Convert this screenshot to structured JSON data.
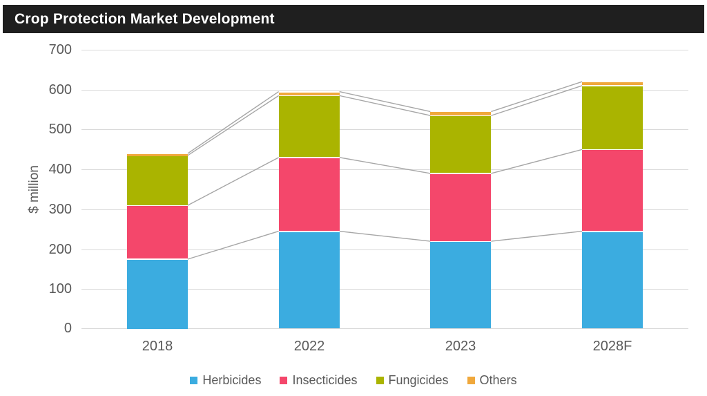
{
  "title_bar": {
    "title": "Crop Protection Market Development",
    "bg_color": "#1F1F1F",
    "text_color": "#FFFFFF"
  },
  "chart_data": {
    "type": "bar",
    "stacked": true,
    "title": "Crop Protection Market Development",
    "categories": [
      "2018",
      "2022",
      "2023",
      "2028F"
    ],
    "series": [
      {
        "name": "Herbicides",
        "color": "#3BACE0",
        "values": [
          175,
          245,
          220,
          245
        ]
      },
      {
        "name": "Insecticides",
        "color": "#F4476B",
        "values": [
          135,
          185,
          170,
          205
        ]
      },
      {
        "name": "Fungicides",
        "color": "#AAB400",
        "values": [
          125,
          155,
          145,
          160
        ]
      },
      {
        "name": "Others",
        "color": "#F0A83C",
        "values": [
          5,
          10,
          10,
          10
        ]
      }
    ],
    "stack_totals": [
      440,
      595,
      545,
      620
    ],
    "xlabel": "",
    "ylabel": "$ million",
    "ylim": [
      0,
      700
    ],
    "yticks": [
      0,
      100,
      200,
      300,
      400,
      500,
      600,
      700
    ],
    "grid": true,
    "gridline_color": "#D9D9D9",
    "series_connector_lines": true,
    "series_line_color": "#A6A6A6",
    "axis_text_color": "#595959",
    "legend_position": "bottom",
    "legend_labels": [
      "Herbicides",
      "Insecticides",
      "Fungicides",
      "Others"
    ]
  }
}
